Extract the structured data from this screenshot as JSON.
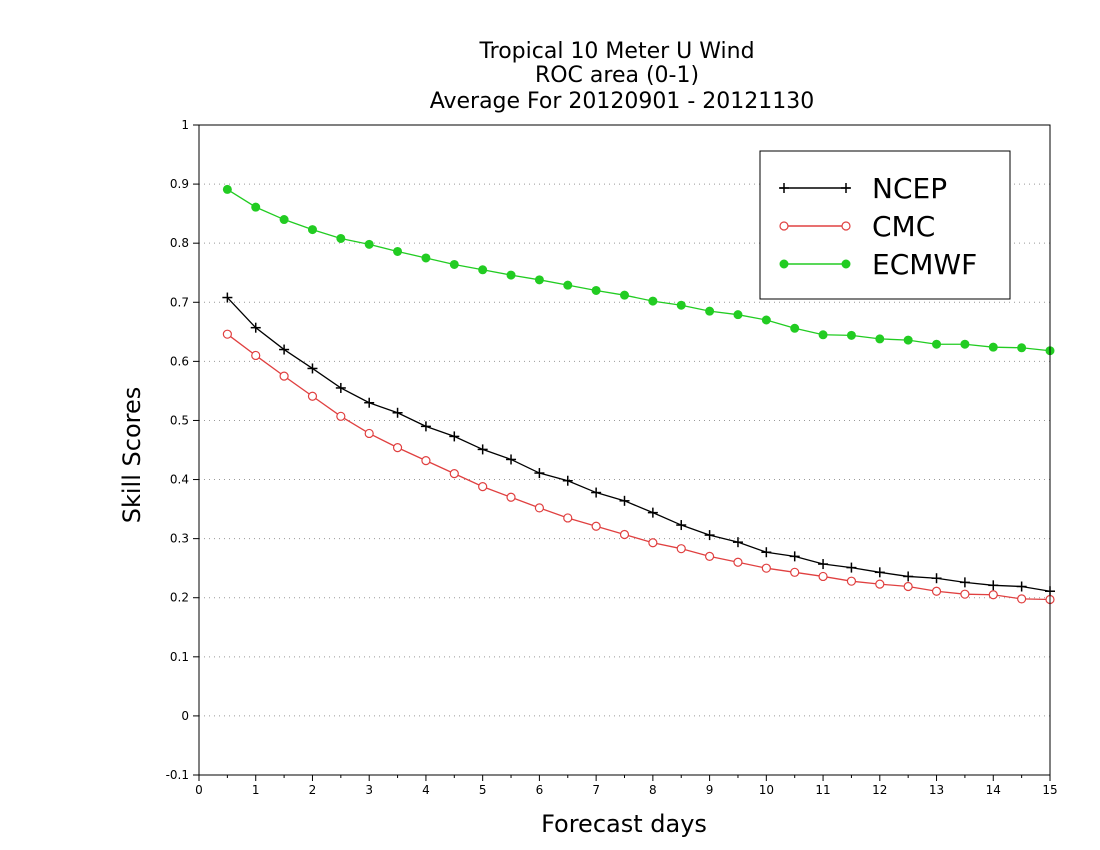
{
  "chart_data": {
    "type": "line",
    "title_lines": [
      "Tropical 10 Meter U Wind",
      "ROC area (0-1)",
      "Average For 20120901 - 20121130"
    ],
    "xlabel": "Forecast days",
    "ylabel": "Skill Scores",
    "xlim": [
      0,
      15
    ],
    "ylim": [
      -0.1,
      1
    ],
    "xticks": [
      0,
      1,
      2,
      3,
      4,
      5,
      6,
      7,
      8,
      9,
      10,
      11,
      12,
      13,
      14,
      15
    ],
    "yticks": [
      -0.1,
      0,
      0.1,
      0.2,
      0.3,
      0.4,
      0.5,
      0.6,
      0.7,
      0.8,
      0.9,
      1
    ],
    "ytick_labels": [
      "-0.1",
      "0",
      "0.1",
      "0.2",
      "0.3",
      "0.4",
      "0.5",
      "0.6",
      "0.7",
      "0.8",
      "0.9",
      "1"
    ],
    "grid": "horizontal dotted",
    "legend_position": "top-right",
    "x": [
      0.5,
      1,
      1.5,
      2,
      2.5,
      3,
      3.5,
      4,
      4.5,
      5,
      5.5,
      6,
      6.5,
      7,
      7.5,
      8,
      8.5,
      9,
      9.5,
      10,
      10.5,
      11,
      11.5,
      12,
      12.5,
      13,
      13.5,
      14,
      14.5,
      15
    ],
    "series": [
      {
        "name": "NCEP",
        "color": "#000000",
        "marker": "plus",
        "values": [
          0.708,
          0.657,
          0.62,
          0.588,
          0.555,
          0.53,
          0.513,
          0.49,
          0.473,
          0.451,
          0.434,
          0.411,
          0.398,
          0.378,
          0.364,
          0.344,
          0.323,
          0.306,
          0.294,
          0.277,
          0.27,
          0.257,
          0.251,
          0.243,
          0.236,
          0.233,
          0.226,
          0.221,
          0.219,
          0.211
        ]
      },
      {
        "name": "CMC",
        "color": "#e04040",
        "marker": "open-circle",
        "values": [
          0.646,
          0.61,
          0.575,
          0.541,
          0.507,
          0.478,
          0.454,
          0.432,
          0.41,
          0.388,
          0.37,
          0.352,
          0.335,
          0.321,
          0.307,
          0.293,
          0.283,
          0.27,
          0.26,
          0.25,
          0.243,
          0.236,
          0.228,
          0.223,
          0.219,
          0.211,
          0.206,
          0.205,
          0.198,
          0.197
        ]
      },
      {
        "name": "ECMWF",
        "color": "#22cc22",
        "marker": "filled-circle",
        "values": [
          0.891,
          0.861,
          0.84,
          0.823,
          0.808,
          0.798,
          0.786,
          0.775,
          0.764,
          0.755,
          0.746,
          0.738,
          0.729,
          0.72,
          0.712,
          0.702,
          0.695,
          0.685,
          0.679,
          0.67,
          0.656,
          0.645,
          0.644,
          0.638,
          0.636,
          0.629,
          0.629,
          0.624,
          0.623,
          0.618
        ]
      }
    ]
  }
}
